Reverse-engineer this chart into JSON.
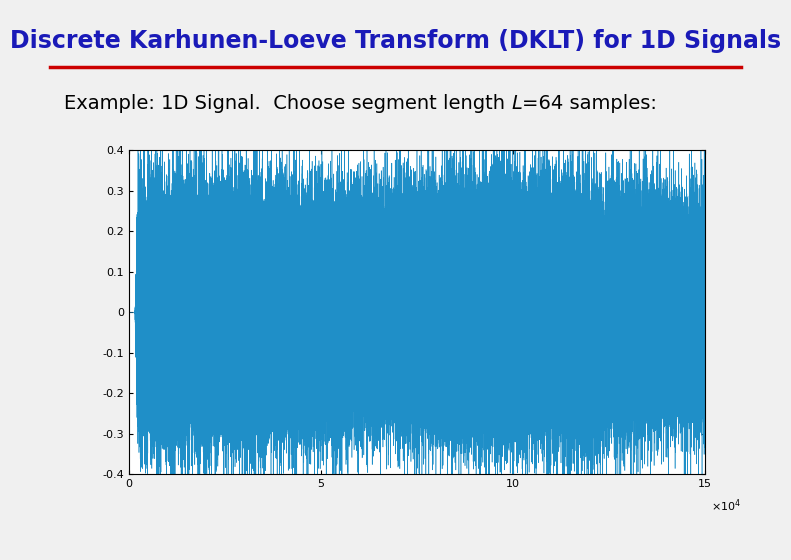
{
  "title": "Discrete Karhunen-Loeve Transform (DKLT) for 1D Signals",
  "title_color": "#1a1ab8",
  "title_fontsize": 17,
  "separator_color": "#cc0000",
  "subtitle_part1": "Example: 1D Signal.  Choose segment length ",
  "subtitle_italic": "L",
  "subtitle_suffix": "=64 samples:",
  "subtitle_fontsize": 14,
  "signal_color": "#1f8fc8",
  "signal_linewidth": 0.4,
  "xlim": [
    0,
    150000
  ],
  "ylim": [
    -0.4,
    0.4
  ],
  "xtick_labels": [
    "0",
    "5",
    "10",
    "15"
  ],
  "xtick_positions": [
    0,
    50000,
    100000,
    150000
  ],
  "ytick_labels": [
    "-0.4",
    "-0.3",
    "-0.2",
    "-0.1",
    "0",
    "0.1",
    "0.2",
    "0.3",
    "0.4"
  ],
  "ytick_positions": [
    -0.4,
    -0.3,
    -0.2,
    -0.1,
    0.0,
    0.1,
    0.2,
    0.3,
    0.4
  ],
  "background_color": "#ffffff",
  "figure_background": "#f0f0f0",
  "n_samples": 150000,
  "onset_sample": 1500,
  "seed": 42
}
